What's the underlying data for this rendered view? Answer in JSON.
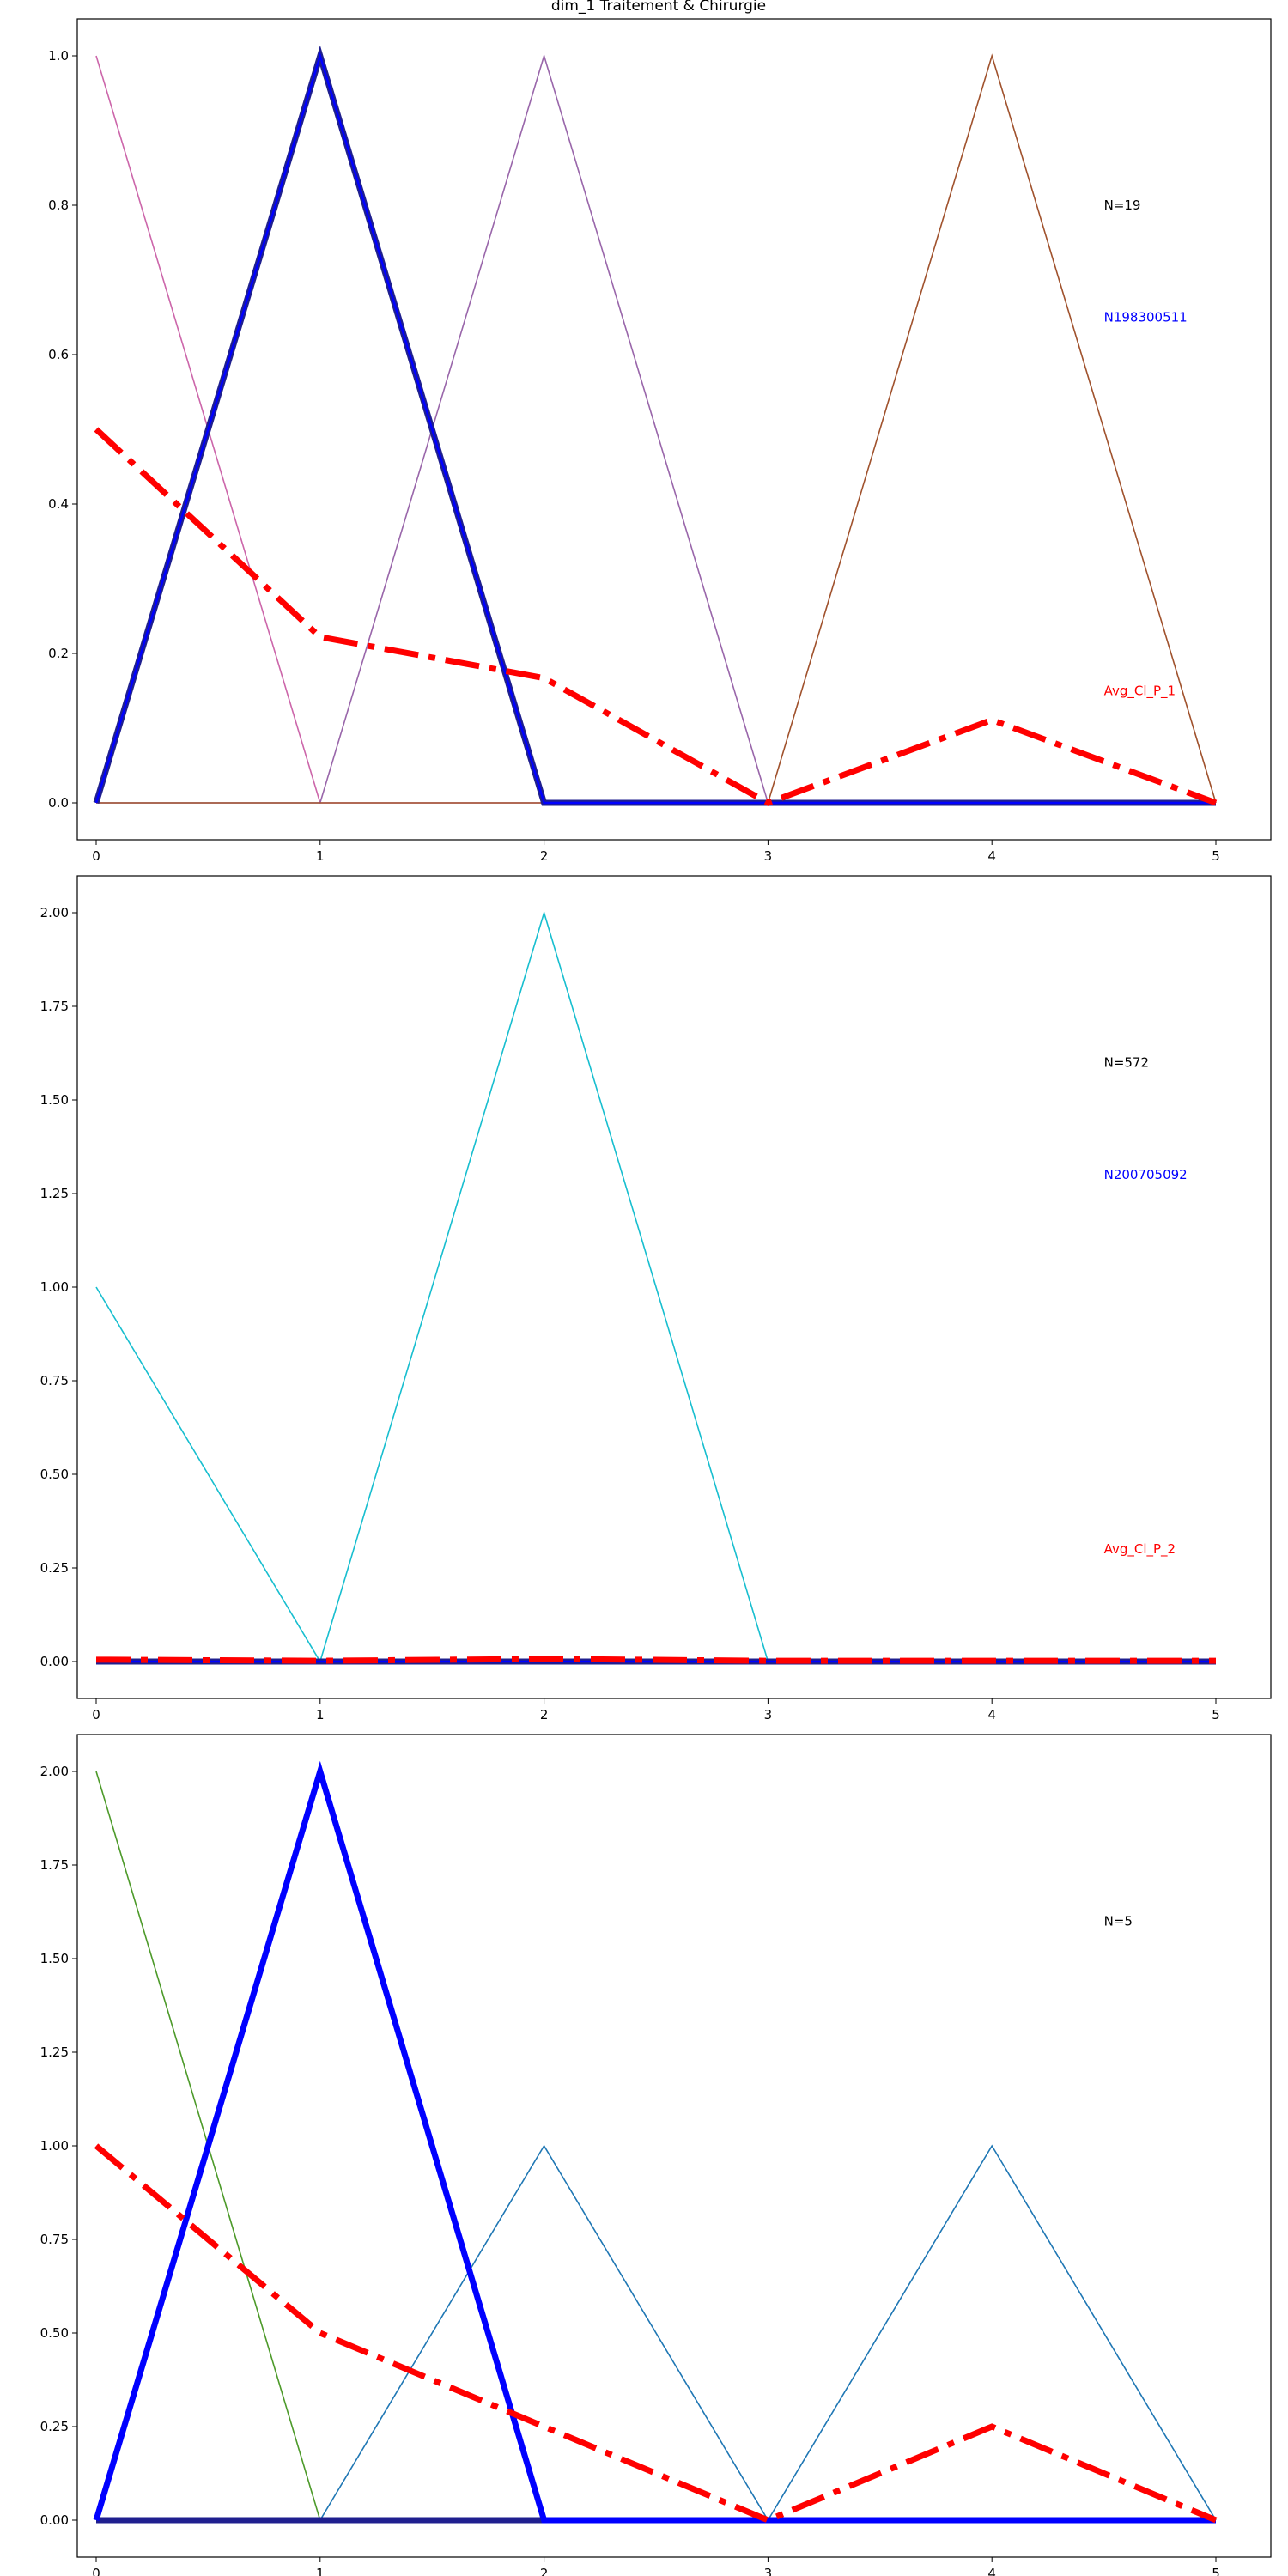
{
  "figure_title": "dim_1 Traitement & Chirurgie",
  "chart_data": [
    {
      "type": "line",
      "title": "dim_1 Traitement & Chirurgie",
      "xlabel": "",
      "ylabel": "",
      "x": [
        0,
        1,
        2,
        3,
        4,
        5
      ],
      "xlim": [
        0,
        5
      ],
      "ylim": [
        0,
        1
      ],
      "yticks": [
        0.0,
        0.2,
        0.4,
        0.6,
        0.8,
        1.0
      ],
      "ytick_labels": [
        "0.0",
        "0.2",
        "0.4",
        "0.6",
        "0.8",
        "1.0"
      ],
      "xtick_labels": [
        "0",
        "1",
        "2",
        "3",
        "4",
        "5"
      ],
      "grid": false,
      "series": [
        {
          "values": [
            1,
            0,
            0,
            0,
            0,
            0
          ],
          "color": "#cc66aa",
          "style": "solid",
          "weight": "thin"
        },
        {
          "values": [
            0,
            0,
            1,
            0,
            0,
            0
          ],
          "color": "#9966aa",
          "style": "solid",
          "weight": "thin"
        },
        {
          "values": [
            0,
            0,
            0,
            0,
            1,
            0
          ],
          "color": "#a0522d",
          "style": "solid",
          "weight": "thin"
        },
        {
          "values": [
            0,
            1,
            0,
            0,
            0,
            0
          ],
          "color": "#1f1f8f",
          "style": "solid",
          "weight": "thick"
        },
        {
          "values": [
            0,
            1,
            0,
            0,
            0,
            0
          ],
          "color": "#0000ff",
          "style": "solid",
          "weight": "medium"
        },
        {
          "name": "Avg_Cl_P_1",
          "values": [
            0.5,
            0.222,
            0.167,
            0,
            0.111,
            0
          ],
          "color": "#ff0000",
          "style": "dashdot",
          "weight": "thick"
        }
      ],
      "annotations": [
        {
          "text": "N=19",
          "color": "#000000",
          "x": 4.5,
          "y": 0.8
        },
        {
          "text": "N198300511",
          "color": "#0000ff",
          "x": 4.5,
          "y": 0.65
        },
        {
          "text": "Avg_Cl_P_1",
          "color": "#ff0000",
          "x": 4.5,
          "y": 0.15
        }
      ]
    },
    {
      "type": "line",
      "xlabel": "",
      "ylabel": "",
      "x": [
        0,
        1,
        2,
        3,
        4,
        5
      ],
      "xlim": [
        0,
        5
      ],
      "ylim": [
        0,
        2
      ],
      "yticks": [
        0.0,
        0.25,
        0.5,
        0.75,
        1.0,
        1.25,
        1.5,
        1.75,
        2.0
      ],
      "ytick_labels": [
        "0.00",
        "0.25",
        "0.50",
        "0.75",
        "1.00",
        "1.25",
        "1.50",
        "1.75",
        "2.00"
      ],
      "xtick_labels": [
        "0",
        "1",
        "2",
        "3",
        "4",
        "5"
      ],
      "grid": false,
      "series": [
        {
          "values": [
            1,
            0,
            2,
            0,
            0,
            0
          ],
          "color": "#17becf",
          "style": "solid",
          "weight": "thin"
        },
        {
          "values": [
            0,
            0,
            0,
            0,
            0,
            0
          ],
          "color": "#1f1f8f",
          "style": "solid",
          "weight": "thick"
        },
        {
          "values": [
            0,
            0,
            0,
            0,
            0,
            0
          ],
          "color": "#0000ff",
          "style": "solid",
          "weight": "medium"
        },
        {
          "name": "Avg_Cl_P_2",
          "values": [
            0.005,
            0.002,
            0.007,
            0.002,
            0.002,
            0.002
          ],
          "color": "#ff0000",
          "style": "dashdot",
          "weight": "thick"
        }
      ],
      "annotations": [
        {
          "text": "N=572",
          "color": "#000000",
          "x": 4.5,
          "y": 1.6
        },
        {
          "text": "N200705092",
          "color": "#0000ff",
          "x": 4.5,
          "y": 1.3
        },
        {
          "text": "Avg_Cl_P_2",
          "color": "#ff0000",
          "x": 4.5,
          "y": 0.3
        }
      ]
    },
    {
      "type": "line",
      "xlabel": "",
      "ylabel": "",
      "x": [
        0,
        1,
        2,
        3,
        4,
        5
      ],
      "xlim": [
        0,
        5
      ],
      "ylim": [
        0,
        2
      ],
      "yticks": [
        0.0,
        0.25,
        0.5,
        0.75,
        1.0,
        1.25,
        1.5,
        1.75,
        2.0
      ],
      "ytick_labels": [
        "0.00",
        "0.25",
        "0.50",
        "0.75",
        "1.00",
        "1.25",
        "1.50",
        "1.75",
        "2.00"
      ],
      "xtick_labels": [
        "0",
        "1",
        "2",
        "3",
        "4",
        "5"
      ],
      "grid": false,
      "series": [
        {
          "values": [
            2,
            0,
            0,
            0,
            0,
            0
          ],
          "color": "#4d9a2a",
          "style": "solid",
          "weight": "thin"
        },
        {
          "values": [
            0,
            0,
            1,
            0,
            1,
            0
          ],
          "color": "#1f77b4",
          "style": "solid",
          "weight": "thin"
        },
        {
          "values": [
            0,
            0,
            0,
            0,
            0,
            0
          ],
          "color": "#1f1f8f",
          "style": "solid",
          "weight": "thick"
        },
        {
          "values": [
            0,
            2,
            0,
            0,
            0,
            0
          ],
          "color": "#0000ff",
          "style": "solid",
          "weight": "heavy"
        },
        {
          "values": [
            1,
            0.5,
            0.25,
            0,
            0.25,
            0
          ],
          "color": "#ff0000",
          "style": "dashdot",
          "weight": "thick"
        }
      ],
      "annotations": [
        {
          "text": "N=5",
          "color": "#000000",
          "x": 4.5,
          "y": 1.6
        }
      ]
    }
  ]
}
